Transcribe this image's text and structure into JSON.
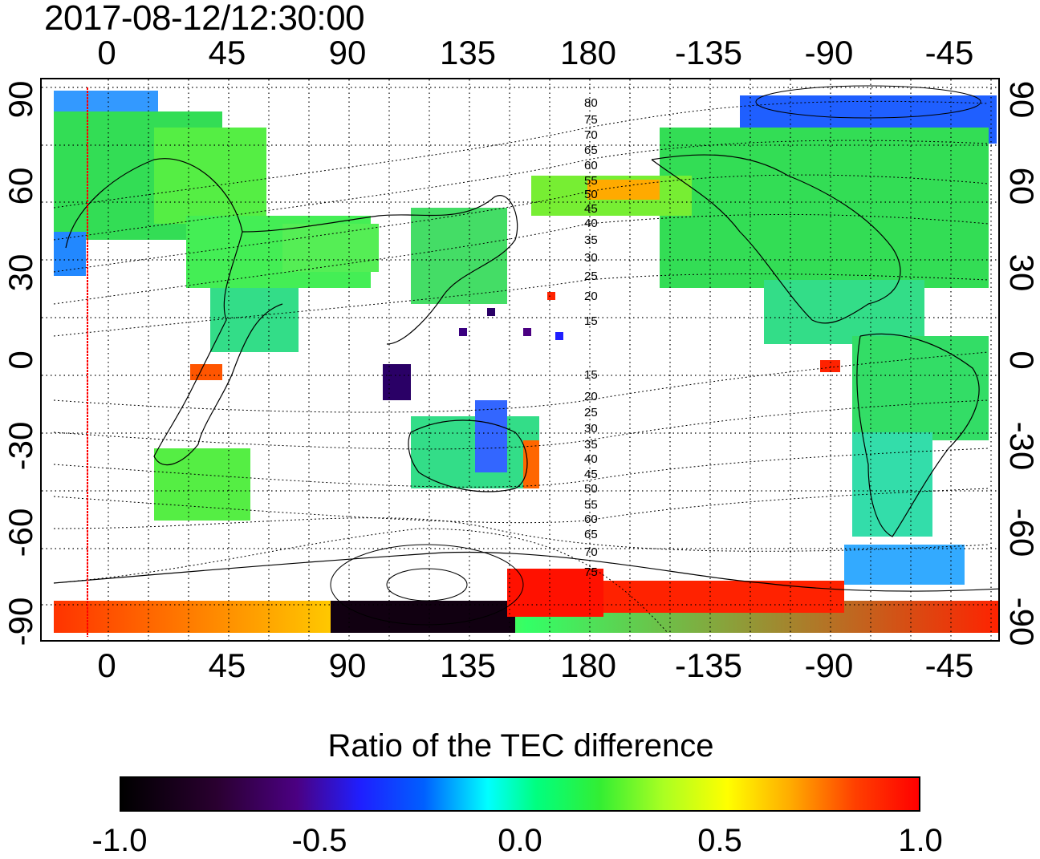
{
  "timestamp": "2017-08-12/12:30:00",
  "map": {
    "top_lon_labels": [
      "0",
      "45",
      "90",
      "135",
      "180",
      "-135",
      "-90",
      "-45"
    ],
    "bottom_lon_labels": [
      "0",
      "45",
      "90",
      "135",
      "180",
      "-135",
      "-90",
      "-45"
    ],
    "left_lat_labels": [
      "90",
      "60",
      "30",
      "0",
      "-30",
      "-60",
      "-90"
    ],
    "right_lat_labels": [
      "90",
      "60",
      "30",
      "0",
      "-30",
      "-60",
      "-90"
    ],
    "contour_labels_north": [
      "80",
      "75",
      "70",
      "65",
      "60",
      "55",
      "50",
      "45",
      "40",
      "35",
      "30",
      "25",
      "20",
      "15"
    ],
    "contour_labels_south": [
      "15",
      "20",
      "25",
      "30",
      "35",
      "40",
      "45",
      "50",
      "55",
      "60",
      "65",
      "70",
      "75"
    ],
    "colors": {
      "frame": "#000000",
      "grid": "#000000",
      "marker_line": "#ff0000"
    }
  },
  "colorbar": {
    "title": "Ratio of the TEC difference",
    "tick_labels": [
      "-1.0",
      "-0.5",
      "0.0",
      "0.5",
      "1.0"
    ],
    "range": [
      -1.0,
      1.0
    ],
    "colors": [
      "#000000",
      "#4b0082",
      "#0000ff",
      "#00ffff",
      "#00ff00",
      "#ffff00",
      "#ff0000"
    ]
  }
}
